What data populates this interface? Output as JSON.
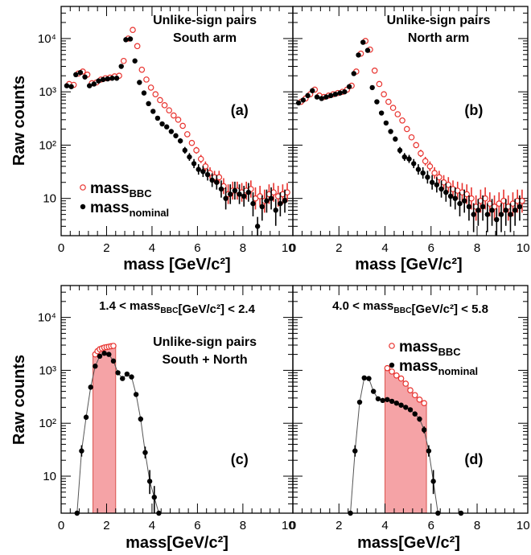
{
  "figure": {
    "ylabel": "Raw counts",
    "xlabel_top": "mass [GeV/c²]",
    "xlabel_bottom": "mass[GeV/c²]",
    "x_ticks": [
      "0",
      "2",
      "4",
      "6",
      "8",
      "10"
    ],
    "y_ticks": [
      "10",
      "10²",
      "10³",
      "10⁴"
    ]
  },
  "legend": {
    "bbc": "mass_BBC",
    "nominal": "mass_nominal"
  },
  "colors": {
    "bbc": "#e8322e",
    "nominal": "#000000",
    "band_fill": "#f5a3a6",
    "band_stroke": "#d9534f"
  },
  "chart_data": [
    {
      "id": "a",
      "type": "scatter",
      "log_y": true,
      "xlim": [
        0,
        10.2
      ],
      "ylim": [
        2,
        40000
      ],
      "label": "(a)",
      "annotation": [
        "Unlike-sign pairs",
        "South arm"
      ],
      "series": [
        {
          "name": "mass_BBC",
          "marker": "open-circle",
          "x": [
            0.3,
            0.5,
            0.7,
            0.9,
            1.1,
            1.3,
            1.5,
            1.7,
            1.9,
            2.1,
            2.3,
            2.5,
            2.7,
            2.9,
            3.1,
            3.3,
            3.5,
            3.7,
            3.9,
            4.1,
            4.3,
            4.5,
            4.7,
            4.9,
            5.1,
            5.3,
            5.5,
            5.7,
            5.9,
            6.1,
            6.3,
            6.5,
            6.7,
            6.9,
            7.1,
            7.3,
            7.5,
            7.7,
            7.9,
            8.1,
            8.3,
            8.5,
            8.7,
            8.9,
            9.1,
            9.3,
            9.5,
            9.7,
            9.9
          ],
          "y": [
            1400,
            1350,
            2200,
            2400,
            2100,
            1450,
            1500,
            1700,
            1800,
            1850,
            1950,
            2000,
            3800,
            10000,
            14500,
            7200,
            2600,
            1700,
            1200,
            900,
            700,
            560,
            450,
            360,
            300,
            230,
            160,
            110,
            80,
            55,
            40,
            30,
            25,
            25,
            17,
            12,
            14,
            14,
            13,
            14,
            15,
            10,
            11,
            9,
            12,
            13,
            11,
            12,
            13
          ]
        },
        {
          "name": "mass_nominal",
          "marker": "filled-circle",
          "x": [
            0.3,
            0.5,
            0.7,
            0.9,
            1.1,
            1.3,
            1.5,
            1.7,
            1.9,
            2.1,
            2.3,
            2.5,
            2.7,
            2.9,
            3.1,
            3.3,
            3.5,
            3.7,
            3.9,
            4.1,
            4.3,
            4.5,
            4.7,
            4.9,
            5.1,
            5.3,
            5.5,
            5.7,
            5.9,
            6.1,
            6.3,
            6.5,
            6.7,
            6.9,
            7.1,
            7.3,
            7.5,
            7.7,
            7.9,
            8.1,
            8.3,
            8.5,
            8.7,
            8.9,
            9.1,
            9.3,
            9.5,
            9.7,
            9.9
          ],
          "y": [
            1300,
            1250,
            2100,
            2300,
            1900,
            1300,
            1400,
            1600,
            1700,
            1750,
            1800,
            1800,
            3000,
            9500,
            9800,
            3800,
            1500,
            950,
            600,
            430,
            320,
            250,
            220,
            180,
            150,
            120,
            80,
            60,
            45,
            35,
            32,
            28,
            22,
            20,
            15,
            10,
            12,
            14,
            12,
            11,
            13,
            8,
            3,
            7,
            9,
            10,
            6,
            8,
            9
          ]
        }
      ]
    },
    {
      "id": "b",
      "type": "scatter",
      "log_y": true,
      "xlim": [
        0,
        10.2
      ],
      "ylim": [
        2,
        40000
      ],
      "label": "(b)",
      "annotation": [
        "Unlike-sign pairs",
        "North arm"
      ],
      "series": [
        {
          "name": "mass_BBC",
          "marker": "open-circle",
          "x": [
            0.3,
            0.5,
            0.7,
            0.9,
            1.1,
            1.3,
            1.5,
            1.7,
            1.9,
            2.1,
            2.3,
            2.5,
            2.7,
            2.9,
            3.1,
            3.3,
            3.5,
            3.7,
            3.9,
            4.1,
            4.3,
            4.5,
            4.7,
            4.9,
            5.1,
            5.3,
            5.5,
            5.7,
            5.9,
            6.1,
            6.3,
            6.5,
            6.7,
            6.9,
            7.1,
            7.3,
            7.5,
            7.7,
            7.9,
            8.1,
            8.3,
            8.5,
            8.7,
            8.9,
            9.1,
            9.3,
            9.5,
            9.7,
            9.9
          ],
          "y": [
            650,
            750,
            900,
            1100,
            850,
            800,
            850,
            900,
            950,
            1000,
            1100,
            1300,
            2400,
            5200,
            9000,
            6200,
            2500,
            1400,
            900,
            650,
            500,
            380,
            290,
            200,
            140,
            100,
            70,
            50,
            40,
            30,
            25,
            20,
            18,
            15,
            14,
            13,
            12,
            10,
            7,
            9,
            10,
            8,
            7,
            8,
            9,
            7,
            8,
            9,
            9
          ]
        },
        {
          "name": "mass_nominal",
          "marker": "filled-circle",
          "x": [
            0.3,
            0.5,
            0.7,
            0.9,
            1.1,
            1.3,
            1.5,
            1.7,
            1.9,
            2.1,
            2.3,
            2.5,
            2.7,
            2.9,
            3.1,
            3.3,
            3.5,
            3.7,
            3.9,
            4.1,
            4.3,
            4.5,
            4.7,
            4.9,
            5.1,
            5.3,
            5.5,
            5.7,
            5.9,
            6.1,
            6.3,
            6.5,
            6.7,
            6.9,
            7.1,
            7.3,
            7.5,
            7.7,
            7.9,
            8.1,
            8.3,
            8.5,
            8.7,
            8.9,
            9.1,
            9.3,
            9.5,
            9.7,
            9.9
          ],
          "y": [
            620,
            700,
            850,
            1050,
            800,
            750,
            800,
            850,
            900,
            950,
            1000,
            1250,
            2200,
            4900,
            8500,
            6000,
            1200,
            650,
            400,
            260,
            180,
            130,
            80,
            60,
            55,
            45,
            35,
            30,
            25,
            20,
            18,
            15,
            13,
            11,
            10,
            8,
            9,
            7,
            5,
            6,
            7,
            5,
            6,
            4,
            5,
            6,
            5,
            6,
            7
          ]
        }
      ]
    },
    {
      "id": "c",
      "type": "scatter",
      "log_y": true,
      "xlim": [
        0,
        10.2
      ],
      "ylim": [
        2,
        40000
      ],
      "label": "(c)",
      "cut": "1.4 < mass_BBC[GeV/c²] < 2.4",
      "annotation": [
        "Unlike-sign pairs",
        "South + North"
      ],
      "band": [
        1.4,
        2.4
      ],
      "series": [
        {
          "name": "mass_BBC",
          "marker": "open-circle",
          "x": [
            1.5,
            1.6,
            1.7,
            1.8,
            1.9,
            2.0,
            2.1,
            2.2,
            2.3
          ],
          "y": [
            2000,
            2300,
            2500,
            2600,
            2700,
            2750,
            2800,
            2850,
            2900
          ]
        },
        {
          "name": "mass_nominal",
          "marker": "filled-circle",
          "x": [
            0.7,
            0.9,
            1.1,
            1.3,
            1.5,
            1.7,
            1.9,
            2.1,
            2.3,
            2.5,
            2.7,
            2.9,
            3.1,
            3.3,
            3.5,
            3.7,
            3.9,
            4.1,
            4.3
          ],
          "y": [
            2,
            30,
            130,
            480,
            1200,
            1850,
            2100,
            2000,
            1500,
            900,
            700,
            850,
            750,
            350,
            120,
            28,
            8,
            4,
            2
          ]
        }
      ]
    },
    {
      "id": "d",
      "type": "scatter",
      "log_y": true,
      "xlim": [
        0,
        10.2
      ],
      "ylim": [
        2,
        40000
      ],
      "label": "(d)",
      "cut": "4.0 < mass_BBC[GeV/c²] < 5.8",
      "band": [
        4.0,
        5.8
      ],
      "series": [
        {
          "name": "mass_BBC",
          "marker": "open-circle",
          "x": [
            4.1,
            4.3,
            4.5,
            4.7,
            4.9,
            5.1,
            5.3,
            5.5,
            5.7
          ],
          "y": [
            1100,
            950,
            800,
            700,
            560,
            420,
            340,
            280,
            240
          ]
        },
        {
          "name": "mass_nominal",
          "marker": "filled-circle",
          "x": [
            2.5,
            2.7,
            2.9,
            3.1,
            3.3,
            3.5,
            3.7,
            3.9,
            4.1,
            4.3,
            4.5,
            4.7,
            4.9,
            5.1,
            5.3,
            5.5,
            5.7,
            5.9,
            6.1,
            6.3,
            7.3
          ],
          "y": [
            2,
            30,
            250,
            720,
            700,
            400,
            290,
            270,
            280,
            260,
            240,
            220,
            200,
            180,
            150,
            120,
            75,
            30,
            8,
            2,
            2
          ]
        }
      ]
    }
  ]
}
